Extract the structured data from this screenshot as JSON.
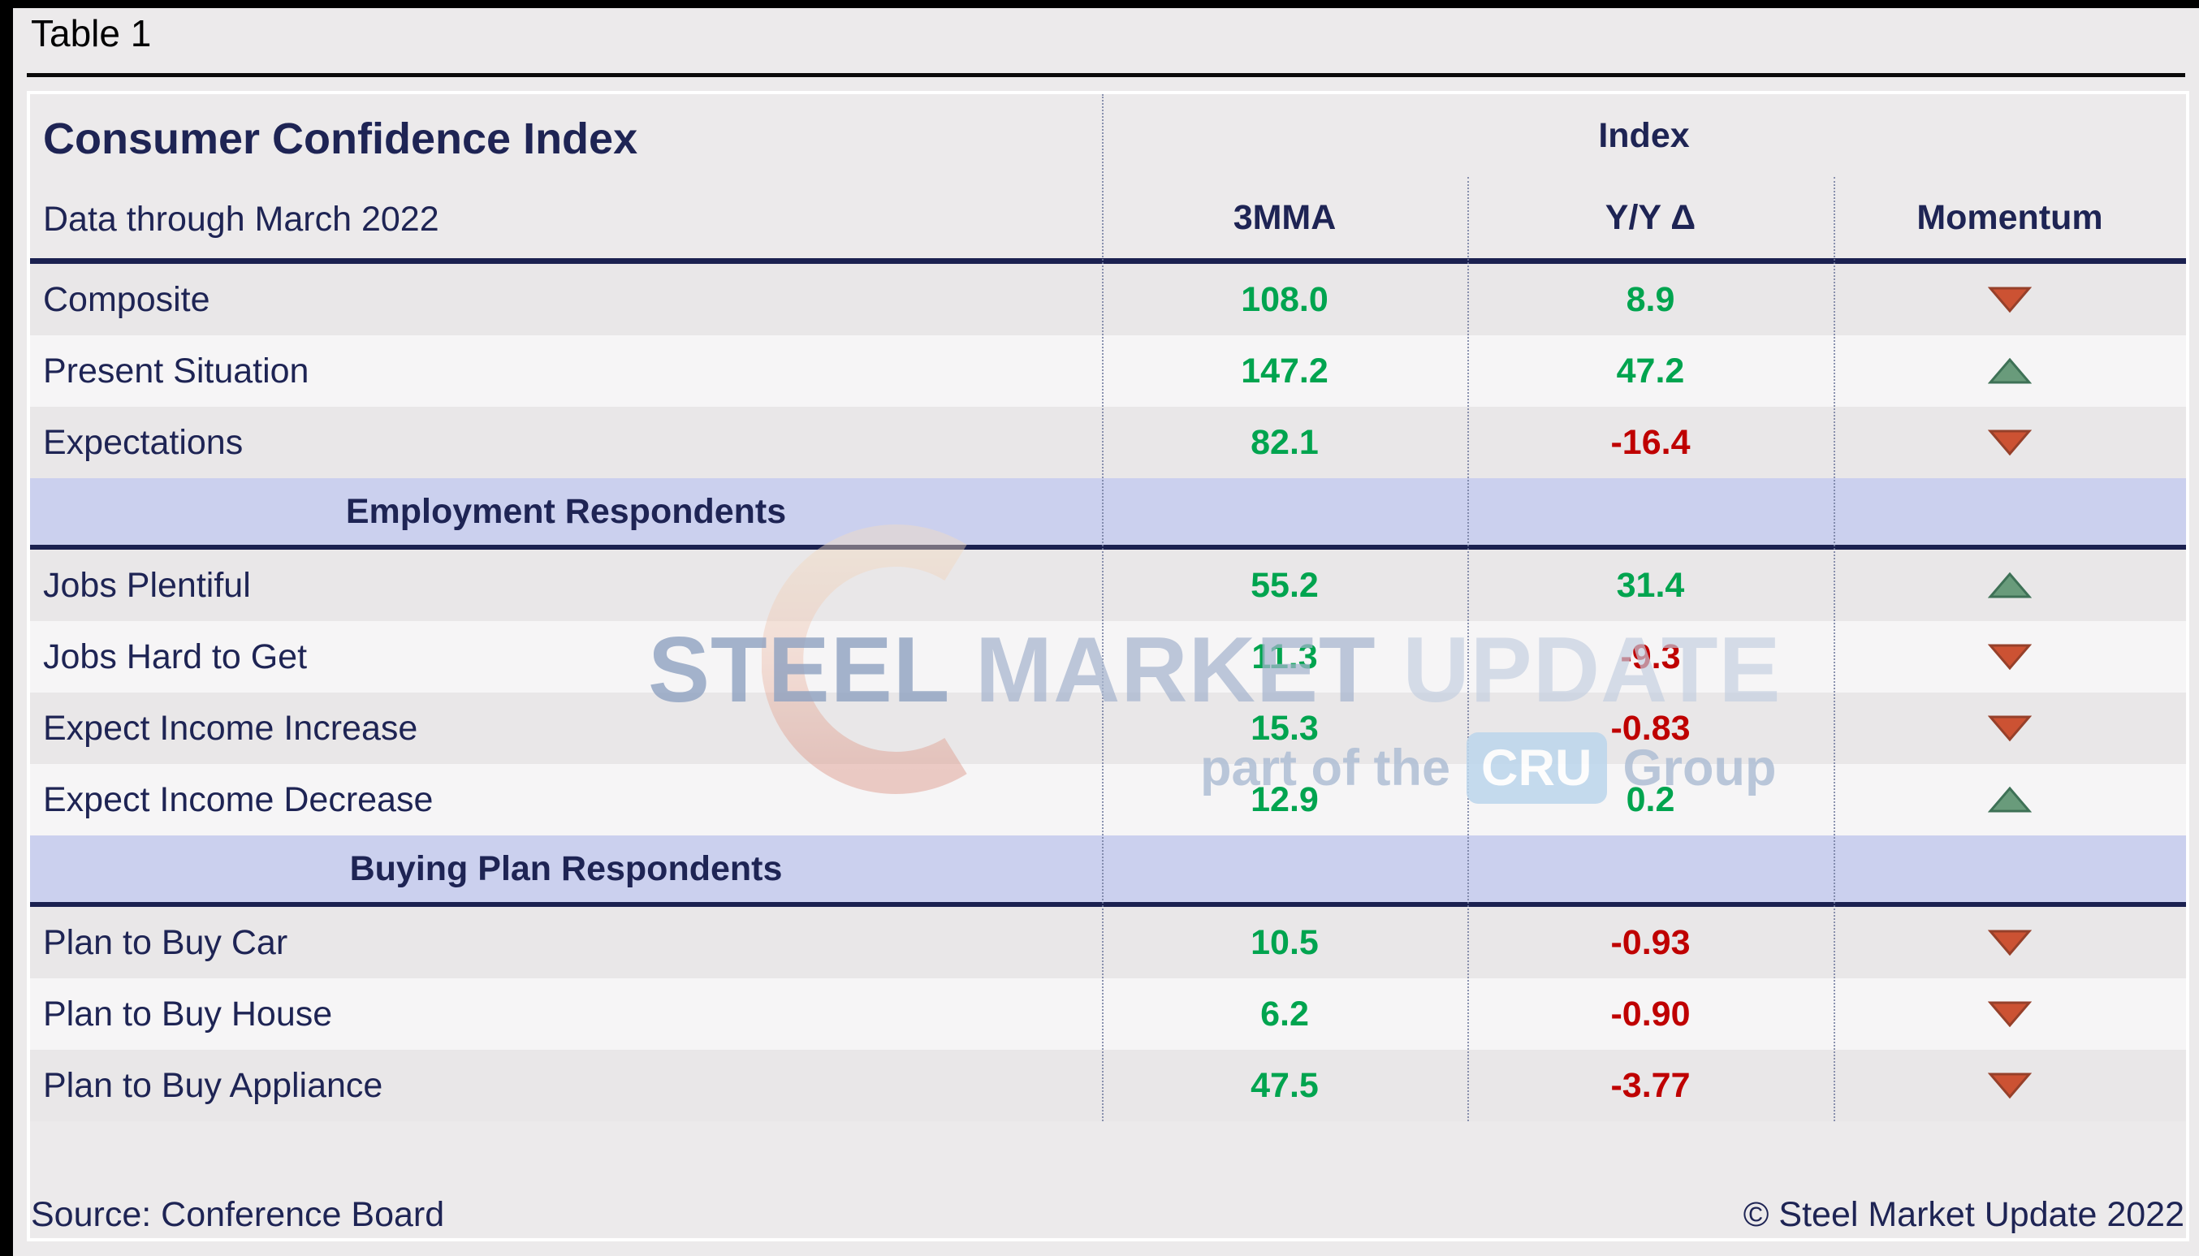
{
  "page": {
    "table_label": "Table 1"
  },
  "table": {
    "title": "Consumer Confidence Index",
    "subtitle": "Data through March 2022",
    "index_header": "Index",
    "columns": [
      "3MMA",
      "Y/Y Δ",
      "Momentum"
    ],
    "rows": [
      {
        "type": "data",
        "label": "Composite",
        "mma": "108.0",
        "yy": "8.9",
        "momentum": "down"
      },
      {
        "type": "data",
        "label": "Present Situation",
        "mma": "147.2",
        "yy": "47.2",
        "momentum": "up"
      },
      {
        "type": "data",
        "label": "Expectations",
        "mma": "82.1",
        "yy": "-16.4",
        "momentum": "down"
      },
      {
        "type": "section",
        "label": "Employment Respondents"
      },
      {
        "type": "data",
        "label": "Jobs Plentiful",
        "mma": "55.2",
        "yy": "31.4",
        "momentum": "up"
      },
      {
        "type": "data",
        "label": "Jobs Hard to Get",
        "mma": "11.3",
        "yy": "-9.3",
        "momentum": "down"
      },
      {
        "type": "data",
        "label": "Expect Income Increase",
        "mma": "15.3",
        "yy": "-0.83",
        "momentum": "down"
      },
      {
        "type": "data",
        "label": "Expect Income Decrease",
        "mma": "12.9",
        "yy": "0.2",
        "momentum": "up"
      },
      {
        "type": "section",
        "label": "Buying Plan Respondents"
      },
      {
        "type": "data",
        "label": "Plan to Buy Car",
        "mma": "10.5",
        "yy": "-0.93",
        "momentum": "down"
      },
      {
        "type": "data",
        "label": "Plan to Buy House",
        "mma": "6.2",
        "yy": "-0.90",
        "momentum": "down"
      },
      {
        "type": "data",
        "label": "Plan to Buy Appliance",
        "mma": "47.5",
        "yy": "-3.77",
        "momentum": "down"
      }
    ]
  },
  "chart_data": {
    "type": "table",
    "title": "Consumer Confidence Index",
    "subtitle": "Data through March 2022",
    "column_group_header": "Index",
    "columns": [
      "3MMA",
      "Y/Y Δ",
      "Momentum"
    ],
    "sections": [
      {
        "name": null,
        "rows": [
          {
            "label": "Composite",
            "mma_3mma": 108.0,
            "yy_delta": 8.9,
            "momentum": "down"
          },
          {
            "label": "Present Situation",
            "mma_3mma": 147.2,
            "yy_delta": 47.2,
            "momentum": "up"
          },
          {
            "label": "Expectations",
            "mma_3mma": 82.1,
            "yy_delta": -16.4,
            "momentum": "down"
          }
        ]
      },
      {
        "name": "Employment Respondents",
        "rows": [
          {
            "label": "Jobs Plentiful",
            "mma_3mma": 55.2,
            "yy_delta": 31.4,
            "momentum": "up"
          },
          {
            "label": "Jobs Hard to Get",
            "mma_3mma": 11.3,
            "yy_delta": -9.3,
            "momentum": "down"
          },
          {
            "label": "Expect Income Increase",
            "mma_3mma": 15.3,
            "yy_delta": -0.83,
            "momentum": "down"
          },
          {
            "label": "Expect Income Decrease",
            "mma_3mma": 12.9,
            "yy_delta": 0.2,
            "momentum": "up"
          }
        ]
      },
      {
        "name": "Buying Plan Respondents",
        "rows": [
          {
            "label": "Plan to Buy Car",
            "mma_3mma": 10.5,
            "yy_delta": -0.93,
            "momentum": "down"
          },
          {
            "label": "Plan to Buy House",
            "mma_3mma": 6.2,
            "yy_delta": -0.9,
            "momentum": "down"
          },
          {
            "label": "Plan to Buy Appliance",
            "mma_3mma": 47.5,
            "yy_delta": -3.77,
            "momentum": "down"
          }
        ]
      }
    ]
  },
  "watermark": {
    "words": [
      "STEEL",
      "MARKET",
      "UPDATE"
    ],
    "tagline_prefix": "part of the",
    "badge": "CRU",
    "tagline_suffix": "Group"
  },
  "footer": {
    "source": "Source: Conference Board",
    "copyright": "© Steel Market Update 2022"
  },
  "colors": {
    "positive": "#00A44F",
    "negative": "#BF0000",
    "navy": "#1E2454",
    "section_bg": "#CBD0EE",
    "up_fill": "#699B7B",
    "up_stroke": "#3E7156",
    "down_fill": "#CC5233",
    "down_stroke": "#96402A"
  }
}
